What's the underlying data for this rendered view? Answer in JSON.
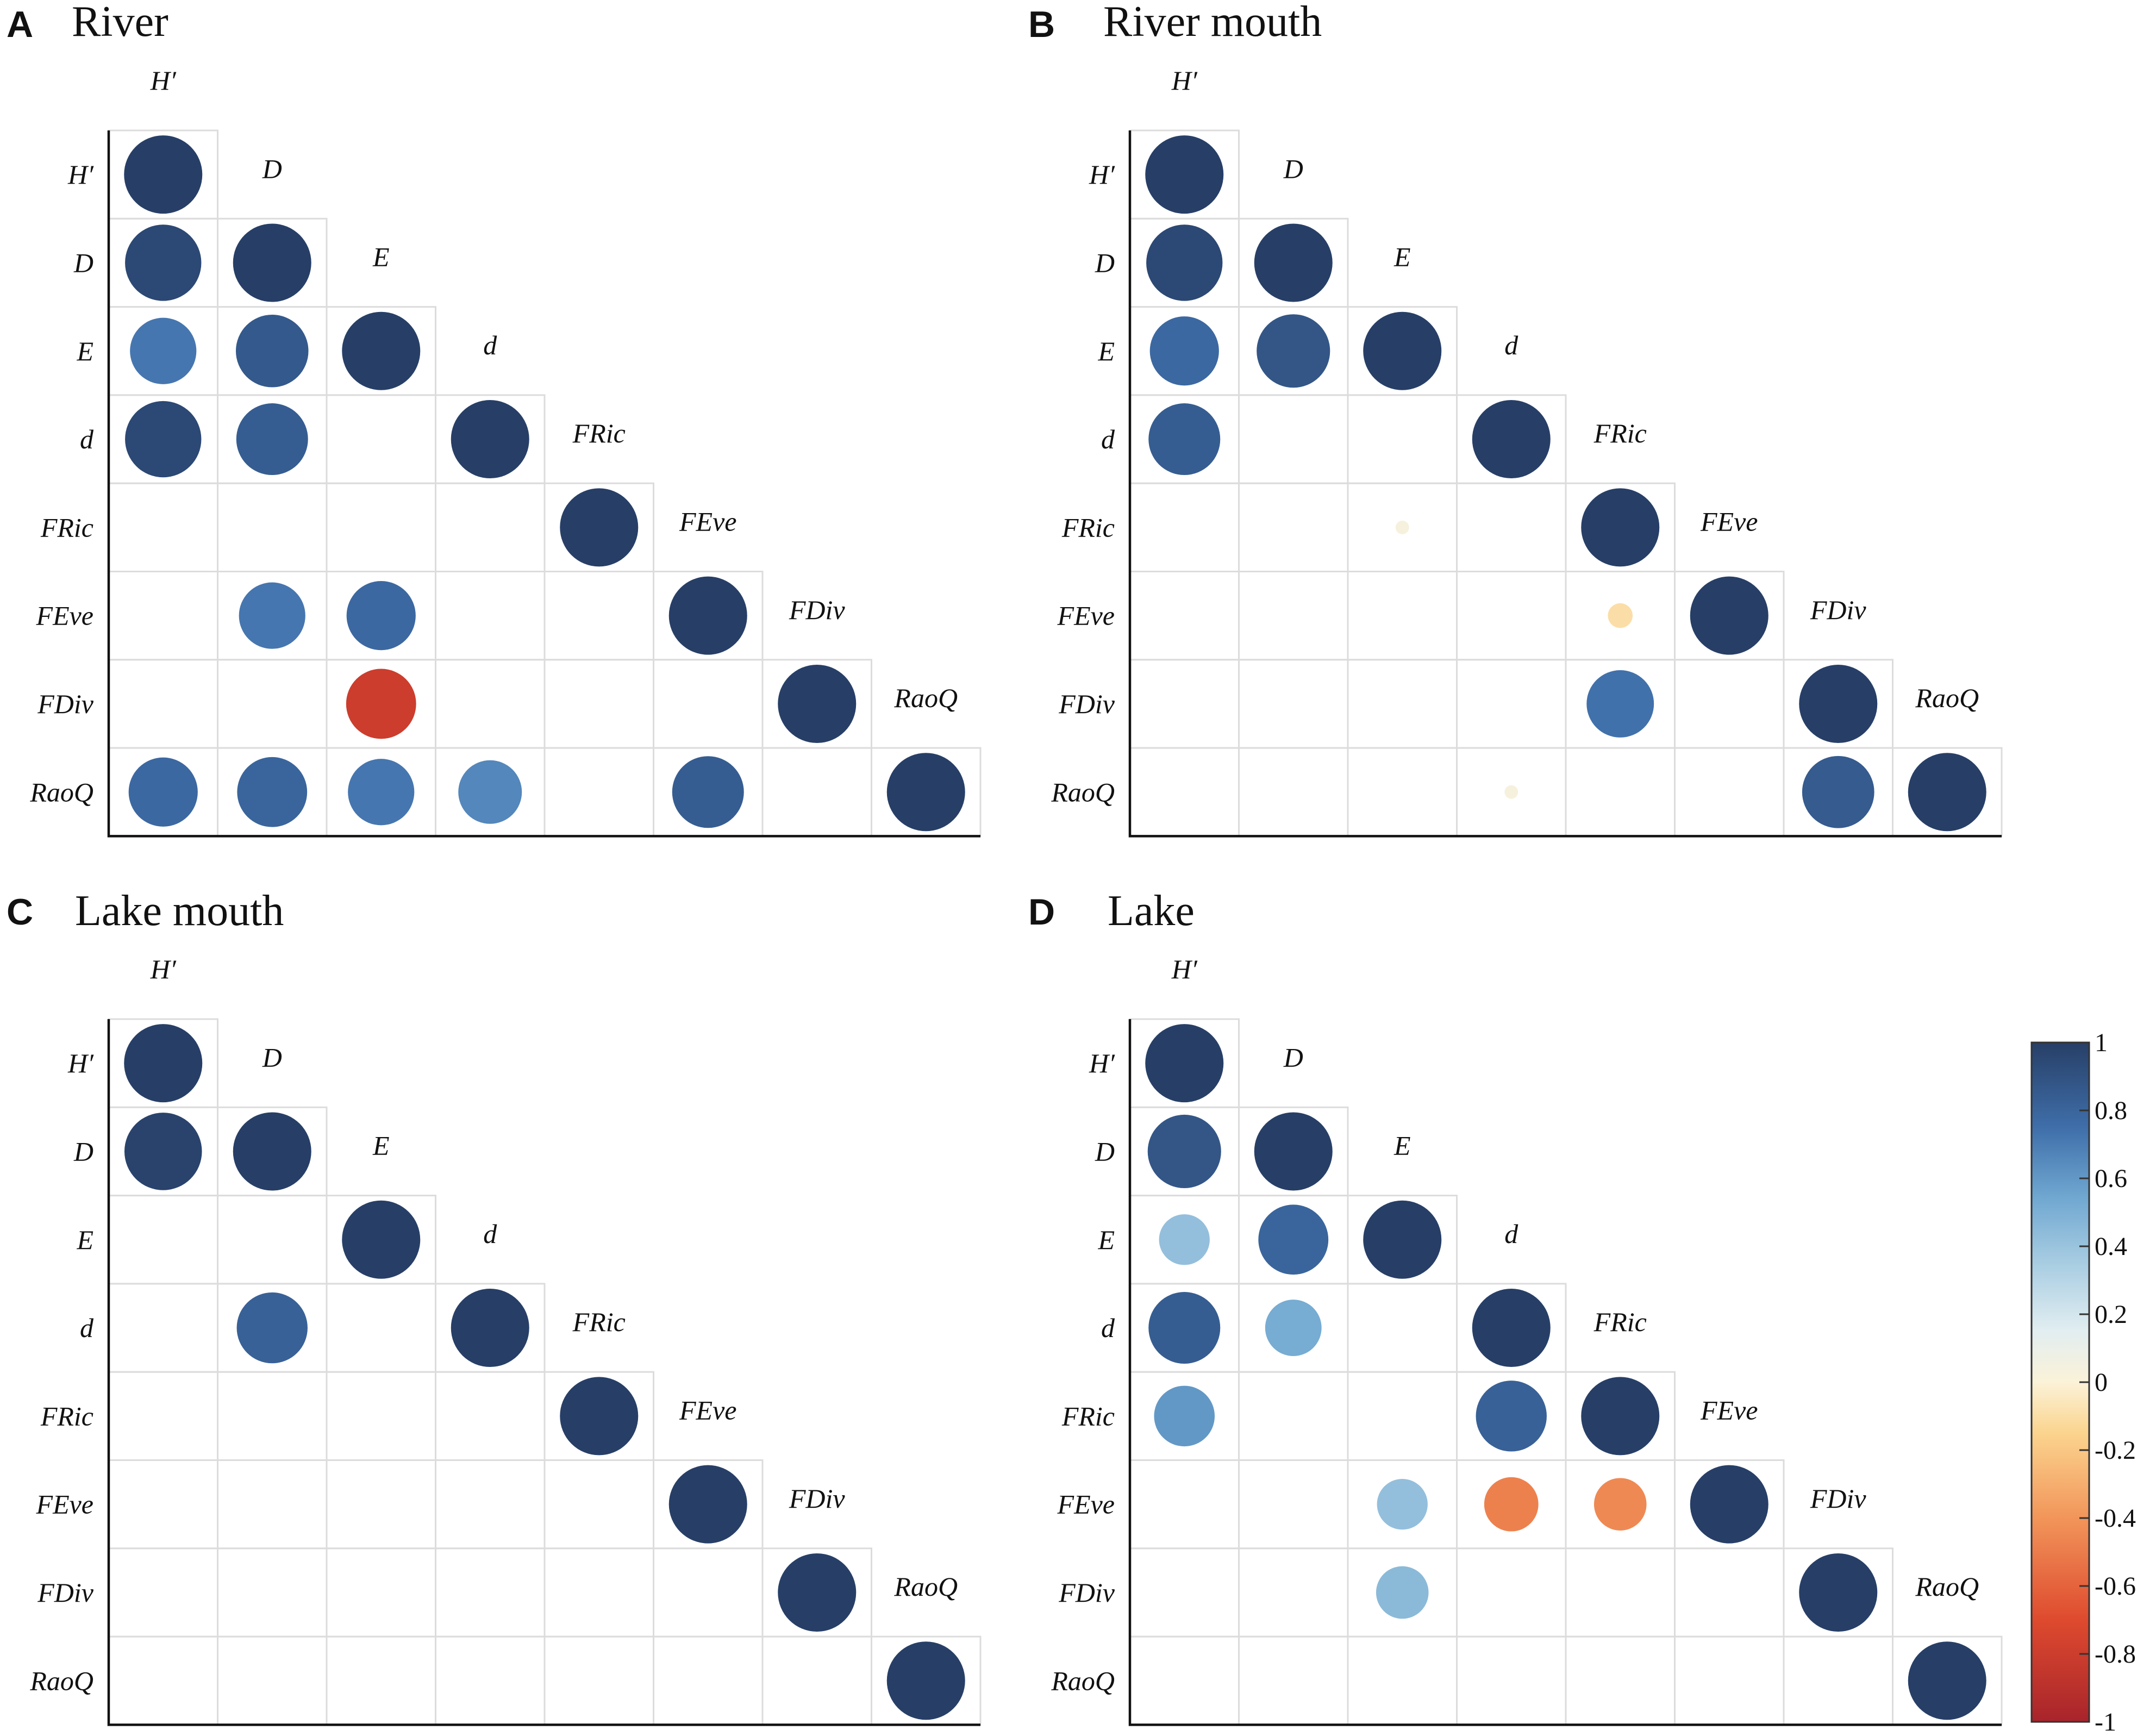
{
  "chart_data": [
    {
      "type": "correlogram",
      "panel_label": "A",
      "title": "River",
      "variables": [
        "H′",
        "D",
        "E",
        "d",
        "FRic",
        "FEve",
        "FDiv",
        "RaoQ"
      ],
      "correlations": [
        [
          1.0
        ],
        [
          0.95,
          1.0
        ],
        [
          0.72,
          0.86,
          1.0
        ],
        [
          0.95,
          0.84,
          null,
          1.0
        ],
        [
          null,
          null,
          null,
          null,
          1.0
        ],
        [
          null,
          0.72,
          0.78,
          null,
          null,
          1.0
        ],
        [
          null,
          null,
          -0.8,
          null,
          null,
          null,
          1.0
        ],
        [
          0.78,
          0.8,
          0.72,
          0.66,
          null,
          0.84,
          null,
          1.0
        ]
      ]
    },
    {
      "type": "correlogram",
      "panel_label": "B",
      "title": "River mouth",
      "variables": [
        "H′",
        "D",
        "E",
        "d",
        "FRic",
        "FEve",
        "FDiv",
        "RaoQ"
      ],
      "correlations": [
        [
          1.0
        ],
        [
          0.95,
          1.0
        ],
        [
          0.78,
          0.88,
          1.0
        ],
        [
          0.84,
          null,
          null,
          1.0
        ],
        [
          null,
          null,
          0.03,
          null,
          1.0
        ],
        [
          null,
          null,
          null,
          null,
          -0.1,
          1.0
        ],
        [
          null,
          null,
          null,
          null,
          0.74,
          null,
          1.0
        ],
        [
          null,
          null,
          null,
          0.03,
          null,
          null,
          0.85,
          1.0
        ]
      ]
    },
    {
      "type": "correlogram",
      "panel_label": "C",
      "title": "Lake mouth",
      "variables": [
        "H′",
        "D",
        "E",
        "d",
        "FRic",
        "FEve",
        "FDiv",
        "RaoQ"
      ],
      "correlations": [
        [
          1.0
        ],
        [
          0.98,
          1.0
        ],
        [
          null,
          null,
          1.0
        ],
        [
          null,
          0.82,
          null,
          1.0
        ],
        [
          null,
          null,
          null,
          null,
          1.0
        ],
        [
          null,
          null,
          null,
          null,
          null,
          1.0
        ],
        [
          null,
          null,
          null,
          null,
          null,
          null,
          1.0
        ],
        [
          null,
          null,
          null,
          null,
          null,
          null,
          null,
          1.0
        ]
      ]
    },
    {
      "type": "correlogram",
      "panel_label": "D",
      "title": "Lake",
      "variables": [
        "H′",
        "D",
        "E",
        "d",
        "FRic",
        "FEve",
        "FDiv",
        "RaoQ"
      ],
      "correlations": [
        [
          1.0
        ],
        [
          0.88,
          1.0
        ],
        [
          0.42,
          0.8,
          1.0
        ],
        [
          0.84,
          0.52,
          null,
          1.0
        ],
        [
          0.6,
          null,
          null,
          0.82,
          1.0
        ],
        [
          null,
          null,
          0.42,
          -0.48,
          -0.45,
          1.0
        ],
        [
          null,
          null,
          0.45,
          null,
          null,
          null,
          1.0
        ],
        [
          null,
          null,
          null,
          null,
          null,
          null,
          null,
          1.0
        ]
      ]
    }
  ],
  "colorbar": {
    "range": [
      -1,
      1
    ],
    "ticks": [
      "1",
      "0.8",
      "0.6",
      "0.4",
      "0.2",
      "0",
      "-0.2",
      "-0.4",
      "-0.6",
      "-0.8",
      "-1"
    ],
    "colors": {
      "neg1": "#a8242b",
      "neg07": "#de4a2e",
      "neg04": "#f2955a",
      "neg015": "#fbd48e",
      "zero": "#fbf2d8",
      "pos015": "#e2eef1",
      "pos035": "#a8cde2",
      "pos055": "#6ea6d0",
      "pos075": "#3f6ea9",
      "pos1": "#273f67"
    }
  }
}
